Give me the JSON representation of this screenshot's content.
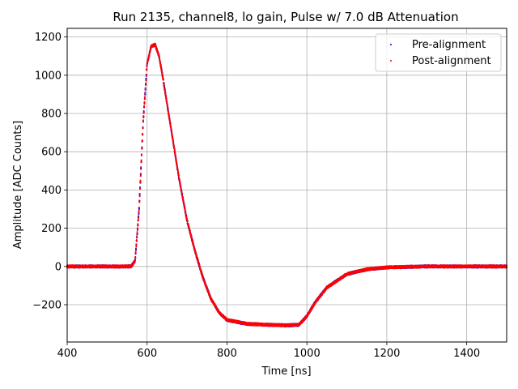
{
  "chart_data": {
    "type": "scatter",
    "title": "Run 2135, channel8, lo gain, Pulse w/ 7.0 dB Attenuation",
    "xlabel": "Time [ns]",
    "ylabel": "Amplitude [ADC Counts]",
    "xlim": [
      400,
      1500
    ],
    "ylim": [
      -395,
      1245
    ],
    "xticks": [
      400,
      600,
      800,
      1000,
      1200,
      1400
    ],
    "yticks": [
      -200,
      0,
      200,
      400,
      600,
      800,
      1000,
      1200
    ],
    "xtick_labels": [
      "400",
      "600",
      "800",
      "1000",
      "1200",
      "1400"
    ],
    "ytick_labels": [
      "−200",
      "0",
      "200",
      "400",
      "600",
      "800",
      "1000",
      "1200"
    ],
    "grid": true,
    "legend_position": "top-right",
    "series": [
      {
        "name": "Pre-alignment",
        "color": "#0000ff",
        "x": [
          400,
          500,
          560,
          570,
          580,
          590,
          600,
          610,
          620,
          630,
          640,
          660,
          680,
          700,
          720,
          740,
          760,
          780,
          800,
          850,
          900,
          950,
          980,
          1000,
          1020,
          1050,
          1100,
          1150,
          1200,
          1300,
          1400,
          1500
        ],
        "y": [
          0,
          0,
          0,
          30,
          300,
          750,
          1060,
          1150,
          1160,
          1100,
          980,
          720,
          460,
          240,
          80,
          -60,
          -170,
          -240,
          -280,
          -300,
          -305,
          -308,
          -305,
          -260,
          -190,
          -110,
          -40,
          -15,
          -5,
          0,
          0,
          0
        ]
      },
      {
        "name": "Post-alignment",
        "color": "#ff0000",
        "x": [
          400,
          500,
          560,
          570,
          580,
          590,
          600,
          610,
          620,
          630,
          640,
          660,
          680,
          700,
          720,
          740,
          760,
          780,
          800,
          850,
          900,
          950,
          980,
          1000,
          1020,
          1050,
          1100,
          1150,
          1200,
          1300,
          1400,
          1500
        ],
        "y": [
          0,
          0,
          0,
          30,
          300,
          750,
          1060,
          1150,
          1160,
          1100,
          980,
          720,
          460,
          240,
          80,
          -60,
          -170,
          -240,
          -280,
          -300,
          -305,
          -308,
          -305,
          -260,
          -190,
          -110,
          -40,
          -15,
          -5,
          0,
          0,
          0
        ]
      }
    ]
  }
}
